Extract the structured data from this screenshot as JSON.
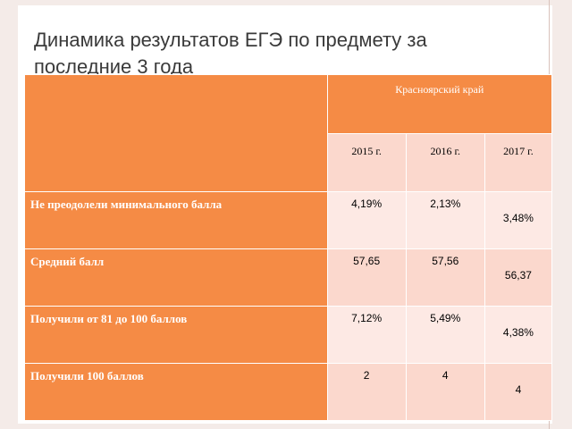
{
  "title": "Динамика результатов ЕГЭ по предмету за последние 3 года",
  "table": {
    "region": "Красноярский край",
    "years": [
      "2015 г.",
      "2016 г.",
      "2017 г."
    ],
    "rows": [
      {
        "label": "Не преодолели минимального балла",
        "values": [
          "4,19%",
          "2,13%",
          "3,48%"
        ]
      },
      {
        "label": "Средний балл",
        "values": [
          "57,65",
          "57,56",
          "56,37"
        ]
      },
      {
        "label": "Получили от 81 до 100 баллов",
        "values": [
          "7,12%",
          "5,49%",
          "4,38%"
        ]
      },
      {
        "label": "Получили 100 баллов",
        "values": [
          "2",
          "4",
          "4"
        ]
      }
    ]
  },
  "colors": {
    "accent": "#f58b45",
    "cell": "#fbd8cd",
    "cell_light": "#fde9e4",
    "border": "#f4ebe8"
  }
}
